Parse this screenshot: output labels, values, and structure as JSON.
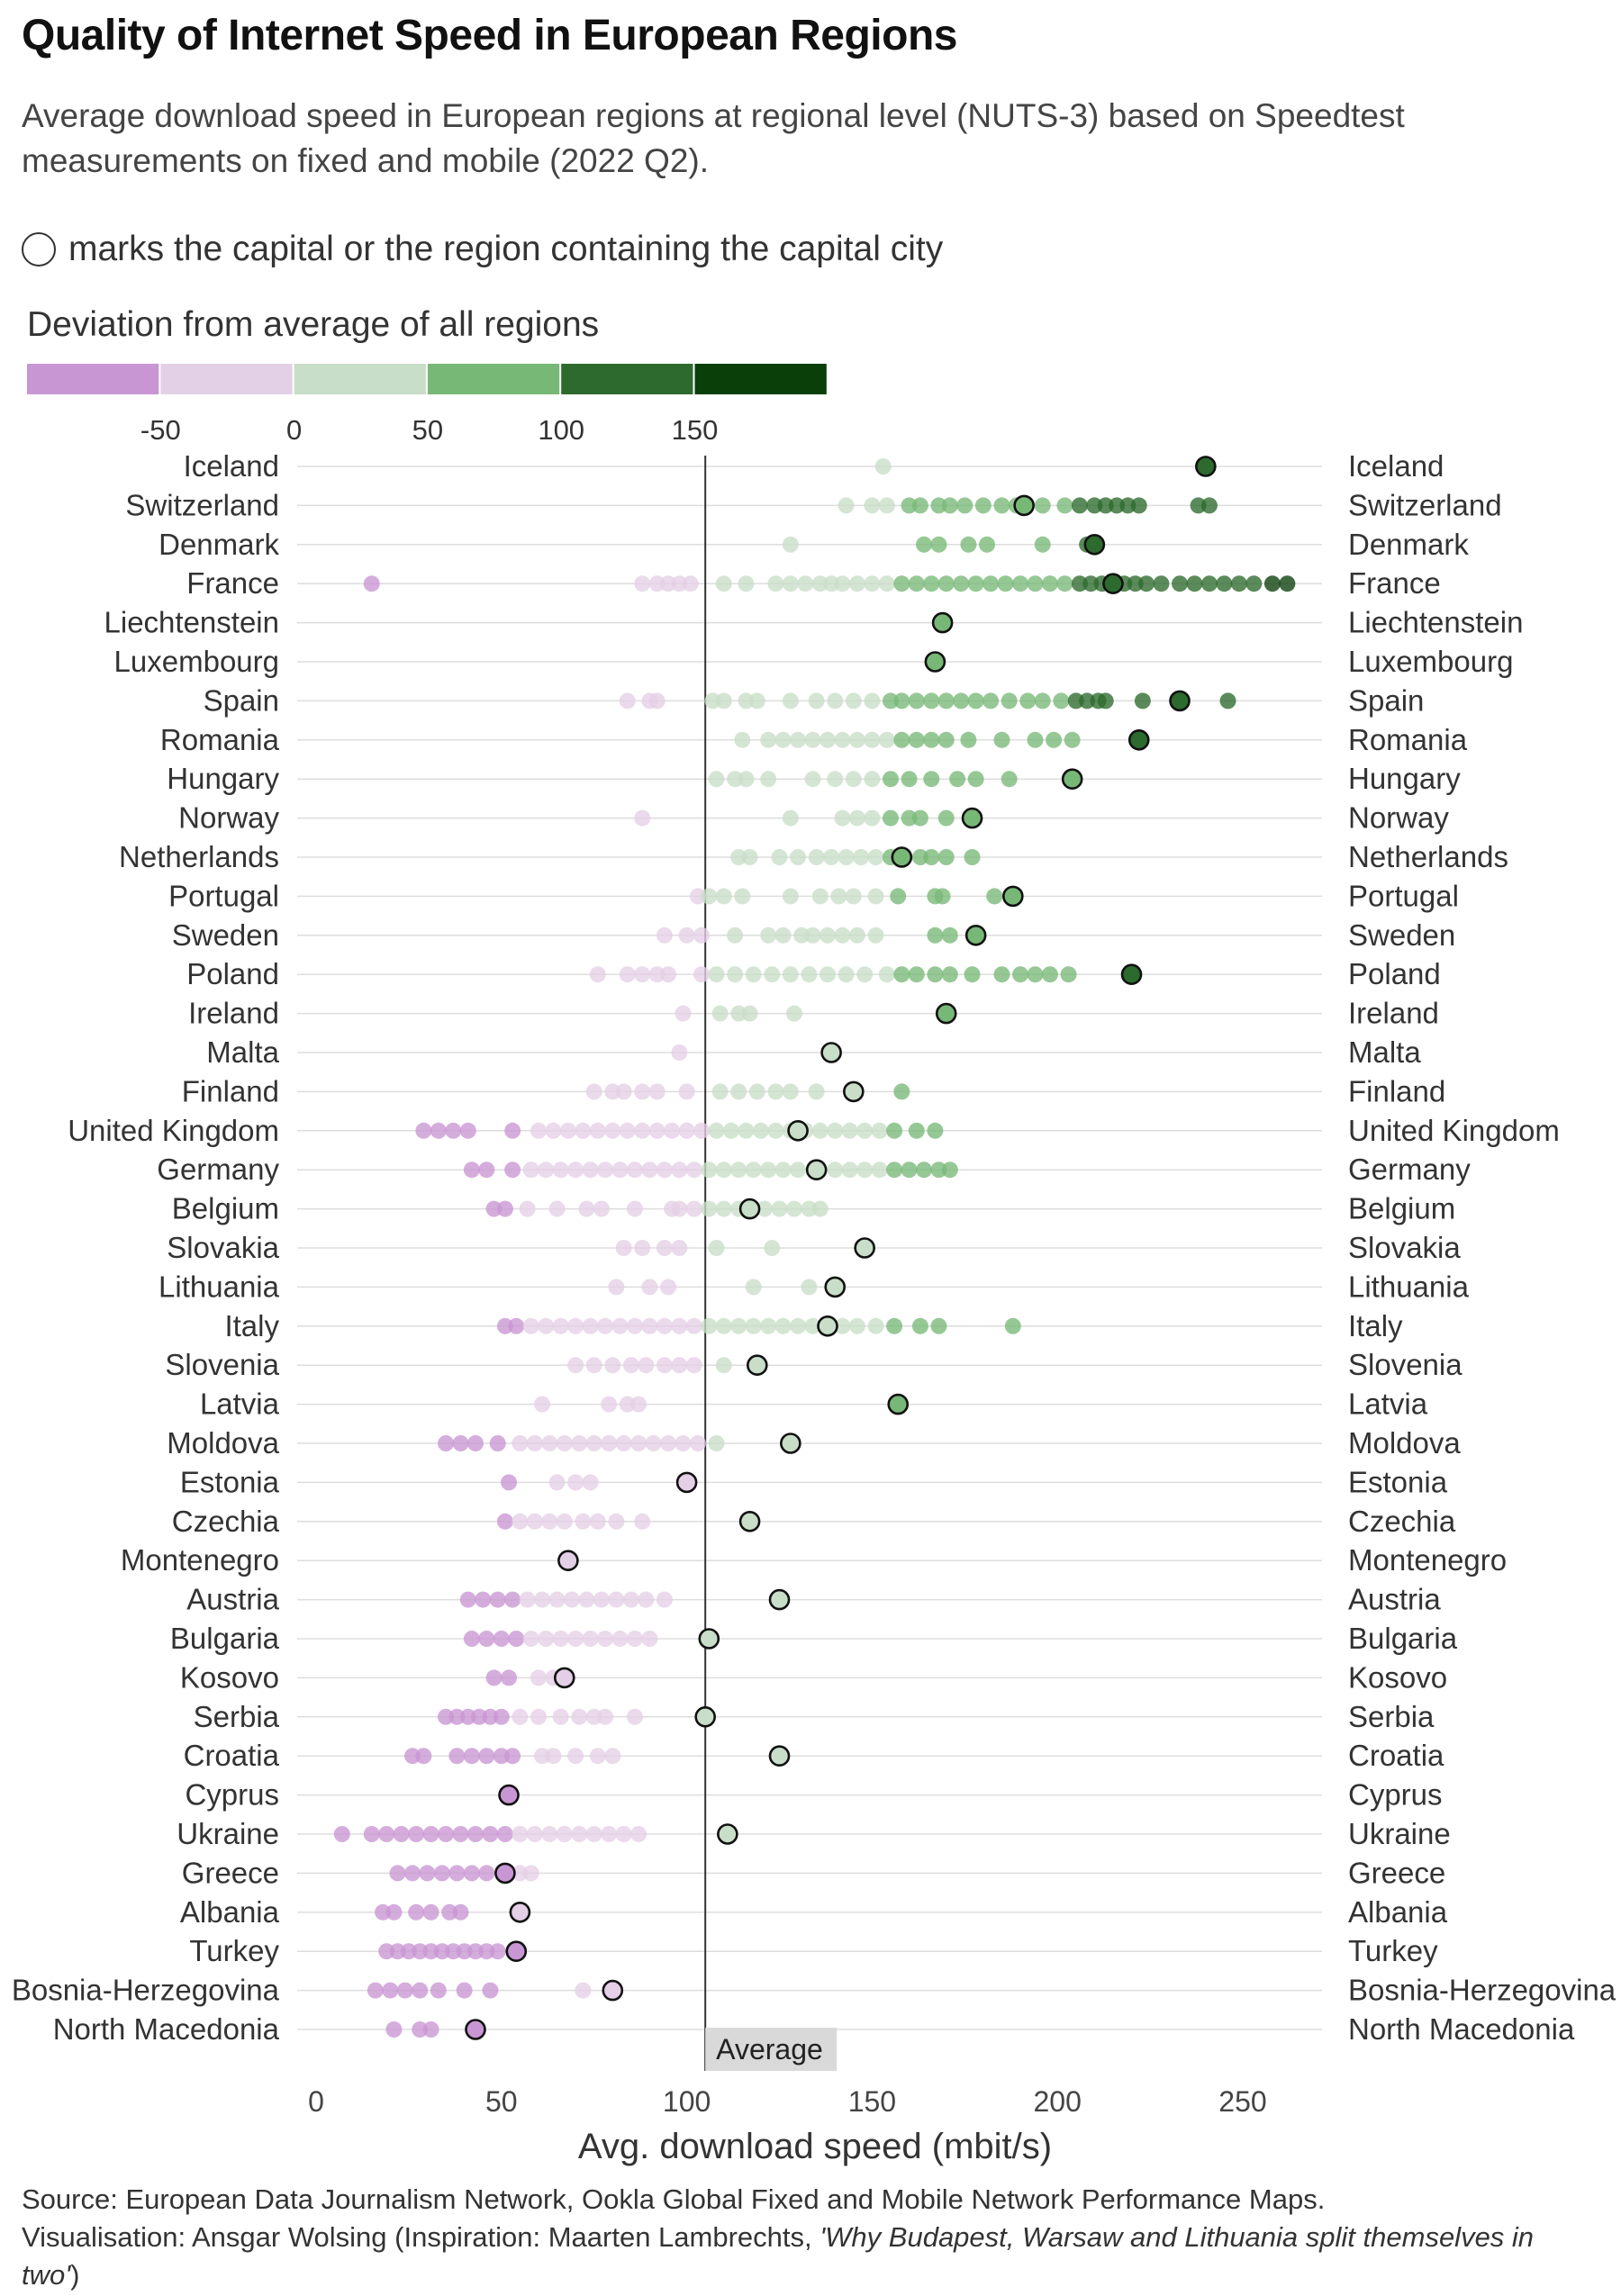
{
  "title": "Quality of Internet Speed in European Regions",
  "subtitle": "Average download speed in European regions at regional level (NUTS-3) based on Speedtest measurements on fixed and mobile (2022 Q2).",
  "capital_note": "marks the capital or the region containing the capital city",
  "caption": {
    "source": "Source: European Data Journalism Network, Ookla Global Fixed and Mobile Network Performance Maps.",
    "vis_prefix": "Visualisation: Ansgar Wolsing (Inspiration: Maarten Lambrechts, ",
    "vis_italic": "'Why Budapest, Warsaw and Lithuania split themselves in two'",
    "vis_suffix": ")"
  },
  "chart_data": {
    "type": "scatter",
    "xlabel": "Avg. download speed (mbit/s)",
    "ylabel": "",
    "xlim": [
      0,
      260
    ],
    "xticks": [
      0,
      50,
      100,
      150,
      200,
      250
    ],
    "average": 105,
    "average_label": "Average",
    "grid": true,
    "legend": {
      "title": "Deviation from average of all regions",
      "breaks": [
        "-50",
        "0",
        "50",
        "100",
        "150"
      ],
      "colors": [
        "#c996d4",
        "#e4d0e6",
        "#c9dec8",
        "#78b877",
        "#2d6a2d",
        "#0a3f0a"
      ]
    },
    "rows": [
      {
        "country": "Iceland",
        "capital": 240,
        "regions": [
          153,
          240
        ]
      },
      {
        "country": "Switzerland",
        "capital": 191,
        "regions": [
          143,
          150,
          154,
          160,
          163,
          168,
          171,
          175,
          180,
          185,
          189,
          191,
          196,
          202,
          206,
          210,
          213,
          216,
          219,
          222,
          238,
          241
        ]
      },
      {
        "country": "Denmark",
        "capital": 210,
        "regions": [
          128,
          164,
          168,
          176,
          181,
          196,
          208,
          210
        ]
      },
      {
        "country": "France",
        "capital": 215,
        "regions": [
          15,
          88,
          92,
          95,
          98,
          101,
          110,
          116,
          124,
          128,
          132,
          136,
          139,
          142,
          146,
          150,
          154,
          158,
          162,
          166,
          170,
          174,
          178,
          182,
          186,
          190,
          194,
          198,
          202,
          206,
          209,
          212,
          215,
          218,
          221,
          224,
          228,
          233,
          237,
          241,
          245,
          249,
          253,
          258,
          262
        ]
      },
      {
        "country": "Liechtenstein",
        "capital": 169,
        "regions": [
          169
        ]
      },
      {
        "country": "Luxembourg",
        "capital": 167,
        "regions": [
          167
        ]
      },
      {
        "country": "Spain",
        "capital": 233,
        "regions": [
          84,
          90,
          92,
          107,
          110,
          116,
          119,
          128,
          135,
          140,
          145,
          150,
          155,
          158,
          162,
          166,
          170,
          174,
          178,
          182,
          187,
          192,
          196,
          201,
          205,
          208,
          211,
          213,
          223,
          233,
          246
        ]
      },
      {
        "country": "Romania",
        "capital": 222,
        "regions": [
          115,
          122,
          126,
          130,
          134,
          138,
          142,
          146,
          150,
          154,
          158,
          162,
          166,
          170,
          176,
          185,
          194,
          199,
          204,
          222
        ]
      },
      {
        "country": "Hungary",
        "capital": 204,
        "regions": [
          108,
          113,
          116,
          122,
          134,
          140,
          145,
          150,
          155,
          160,
          166,
          173,
          178,
          187,
          204
        ]
      },
      {
        "country": "Norway",
        "capital": 177,
        "regions": [
          88,
          128,
          142,
          146,
          150,
          155,
          160,
          163,
          170,
          177
        ]
      },
      {
        "country": "Netherlands",
        "capital": 158,
        "regions": [
          114,
          117,
          125,
          130,
          135,
          139,
          143,
          147,
          151,
          155,
          158,
          163,
          166,
          170,
          177
        ]
      },
      {
        "country": "Portugal",
        "capital": 188,
        "regions": [
          103,
          106,
          110,
          115,
          128,
          136,
          141,
          145,
          151,
          157,
          167,
          169,
          183,
          188
        ]
      },
      {
        "country": "Sweden",
        "capital": 178,
        "regions": [
          94,
          100,
          104,
          113,
          122,
          126,
          131,
          134,
          138,
          142,
          146,
          151,
          167,
          171,
          178
        ]
      },
      {
        "country": "Poland",
        "capital": 220,
        "regions": [
          76,
          84,
          88,
          92,
          95,
          104,
          108,
          113,
          118,
          123,
          128,
          133,
          138,
          143,
          148,
          154,
          158,
          162,
          167,
          171,
          177,
          185,
          190,
          194,
          198,
          203,
          220
        ]
      },
      {
        "country": "Ireland",
        "capital": 170,
        "regions": [
          99,
          109,
          114,
          117,
          129,
          170
        ]
      },
      {
        "country": "Malta",
        "capital": 139,
        "regions": [
          98,
          139
        ]
      },
      {
        "country": "Finland",
        "capital": 145,
        "regions": [
          75,
          80,
          83,
          88,
          92,
          100,
          109,
          114,
          119,
          124,
          128,
          135,
          145,
          158
        ]
      },
      {
        "country": "United Kingdom",
        "capital": 130,
        "regions": [
          29,
          33,
          37,
          41,
          53,
          60,
          64,
          68,
          72,
          76,
          80,
          84,
          88,
          92,
          96,
          100,
          104,
          108,
          112,
          116,
          120,
          124,
          128,
          132,
          136,
          140,
          144,
          148,
          152,
          156,
          162,
          167
        ]
      },
      {
        "country": "Germany",
        "capital": 135,
        "regions": [
          42,
          46,
          53,
          58,
          62,
          66,
          70,
          74,
          78,
          82,
          86,
          90,
          94,
          98,
          102,
          106,
          110,
          114,
          118,
          122,
          126,
          130,
          135,
          140,
          144,
          148,
          152,
          156,
          160,
          164,
          168,
          171
        ]
      },
      {
        "country": "Belgium",
        "capital": 117,
        "regions": [
          48,
          51,
          57,
          65,
          73,
          77,
          86,
          96,
          98,
          102,
          106,
          110,
          114,
          117,
          121,
          125,
          129,
          133,
          136
        ]
      },
      {
        "country": "Slovakia",
        "capital": 148,
        "regions": [
          83,
          88,
          94,
          98,
          108,
          123,
          148
        ]
      },
      {
        "country": "Lithuania",
        "capital": 140,
        "regions": [
          81,
          90,
          95,
          118,
          133,
          140
        ]
      },
      {
        "country": "Italy",
        "capital": 138,
        "regions": [
          51,
          54,
          58,
          62,
          66,
          70,
          74,
          78,
          82,
          86,
          90,
          94,
          98,
          102,
          106,
          110,
          114,
          118,
          122,
          126,
          130,
          134,
          138,
          142,
          146,
          151,
          156,
          163,
          168,
          188
        ]
      },
      {
        "country": "Slovenia",
        "capital": 119,
        "regions": [
          70,
          75,
          80,
          85,
          89,
          94,
          98,
          102,
          110,
          119
        ]
      },
      {
        "country": "Latvia",
        "capital": 157,
        "regions": [
          61,
          79,
          84,
          87,
          157
        ]
      },
      {
        "country": "Moldova",
        "capital": 128,
        "regions": [
          35,
          39,
          43,
          49,
          55,
          59,
          63,
          67,
          71,
          75,
          79,
          83,
          87,
          91,
          95,
          99,
          103,
          108,
          128
        ]
      },
      {
        "country": "Estonia",
        "capital": 100,
        "regions": [
          52,
          65,
          70,
          74,
          100
        ]
      },
      {
        "country": "Czechia",
        "capital": 117,
        "regions": [
          51,
          55,
          59,
          63,
          67,
          72,
          76,
          81,
          88,
          117
        ]
      },
      {
        "country": "Montenegro",
        "capital": 68,
        "regions": [
          68
        ]
      },
      {
        "country": "Austria",
        "capital": 125,
        "regions": [
          41,
          45,
          49,
          53,
          57,
          61,
          65,
          69,
          73,
          77,
          81,
          85,
          89,
          94,
          125
        ]
      },
      {
        "country": "Bulgaria",
        "capital": 106,
        "regions": [
          42,
          46,
          50,
          54,
          58,
          62,
          66,
          70,
          74,
          78,
          82,
          86,
          90,
          106
        ]
      },
      {
        "country": "Kosovo",
        "capital": 67,
        "regions": [
          48,
          52,
          60,
          64,
          67
        ]
      },
      {
        "country": "Serbia",
        "capital": 105,
        "regions": [
          35,
          38,
          41,
          44,
          47,
          50,
          55,
          60,
          66,
          71,
          75,
          78,
          86,
          105
        ]
      },
      {
        "country": "Croatia",
        "capital": 125,
        "regions": [
          26,
          29,
          38,
          42,
          46,
          50,
          53,
          61,
          64,
          70,
          76,
          80,
          125
        ]
      },
      {
        "country": "Cyprus",
        "capital": 52,
        "regions": [
          52
        ]
      },
      {
        "country": "Ukraine",
        "capital": 111,
        "regions": [
          7,
          15,
          19,
          23,
          27,
          31,
          35,
          39,
          43,
          47,
          51,
          55,
          59,
          63,
          67,
          71,
          75,
          79,
          83,
          87,
          111
        ]
      },
      {
        "country": "Greece",
        "capital": 51,
        "regions": [
          22,
          26,
          30,
          34,
          38,
          42,
          46,
          51,
          55,
          58
        ]
      },
      {
        "country": "Albania",
        "capital": 55,
        "regions": [
          18,
          21,
          27,
          31,
          36,
          39,
          55
        ]
      },
      {
        "country": "Turkey",
        "capital": 54,
        "regions": [
          19,
          22,
          25,
          28,
          31,
          34,
          37,
          40,
          43,
          46,
          49,
          54
        ]
      },
      {
        "country": "Bosnia-Herzegovina",
        "capital": 80,
        "regions": [
          16,
          20,
          24,
          28,
          33,
          40,
          47,
          72,
          80
        ]
      },
      {
        "country": "North Macedonia",
        "capital": 43,
        "regions": [
          21,
          28,
          31,
          43
        ]
      }
    ]
  }
}
